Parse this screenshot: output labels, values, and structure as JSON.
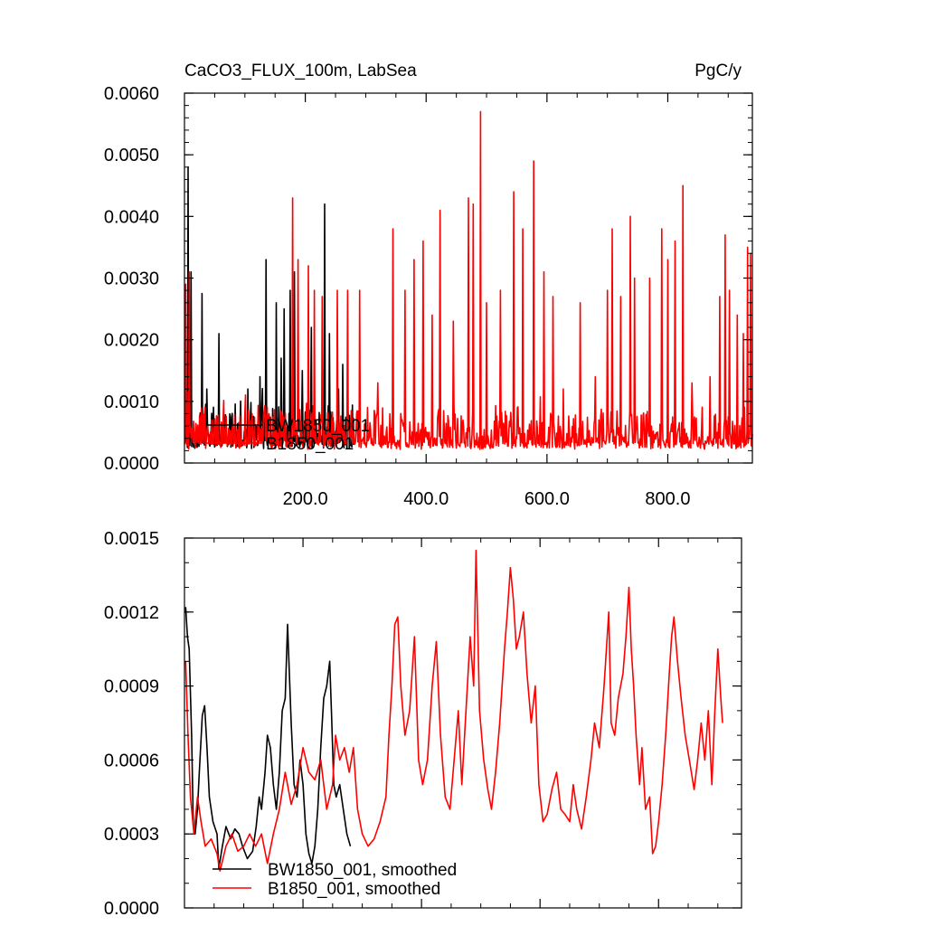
{
  "chart_data": [
    {
      "type": "line",
      "title": "CaCO3_FLUX_100m, LabSea",
      "units": "PgC/y",
      "xlim": [
        0,
        940
      ],
      "ylim": [
        0,
        0.006
      ],
      "x_ticks": [
        "200.0",
        "400.0",
        "600.0",
        "800.0"
      ],
      "y_ticks": [
        "0.0000",
        "0.0010",
        "0.0020",
        "0.0030",
        "0.0040",
        "0.0050",
        "0.0060"
      ],
      "grid": false,
      "legend_position": "inside-bottom-left",
      "series": [
        {
          "name": "BW1850_001",
          "color": "#000000",
          "x_start": 1,
          "x_end": 280,
          "base": 0.0003,
          "noise": 0.00022,
          "peaks": [
            [
              6,
              0.0048
            ],
            [
              11,
              0.0031
            ],
            [
              29,
              0.00275
            ],
            [
              37,
              0.0012
            ],
            [
              57,
              0.0021
            ],
            [
              75,
              0.0008
            ],
            [
              105,
              0.0012
            ],
            [
              125,
              0.0014
            ],
            [
              135,
              0.0033
            ],
            [
              152,
              0.0026
            ],
            [
              160,
              0.0017
            ],
            [
              165,
              0.0025
            ],
            [
              175,
              0.0028
            ],
            [
              182,
              0.0031
            ],
            [
              195,
              0.0015
            ],
            [
              210,
              0.0022
            ],
            [
              232,
              0.0042
            ],
            [
              240,
              0.0021
            ],
            [
              255,
              0.0012
            ],
            [
              262,
              0.0016
            ],
            [
              270,
              0.0009
            ]
          ]
        },
        {
          "name": "B1850_001",
          "color": "#ff0000",
          "x_start": 1,
          "x_end": 940,
          "base": 0.00028,
          "noise": 0.0002,
          "peaks": [
            [
              2,
              0.0029
            ],
            [
              8,
              0.0031
            ],
            [
              45,
              0.0007
            ],
            [
              140,
              0.0008
            ],
            [
              179,
              0.0043
            ],
            [
              188,
              0.0033
            ],
            [
              205,
              0.0032
            ],
            [
              215,
              0.0028
            ],
            [
              228,
              0.0027
            ],
            [
              253,
              0.0028
            ],
            [
              270,
              0.0028
            ],
            [
              290,
              0.0028
            ],
            [
              303,
              0.0009
            ],
            [
              320,
              0.0013
            ],
            [
              345,
              0.0038
            ],
            [
              365,
              0.0028
            ],
            [
              380,
              0.0033
            ],
            [
              395,
              0.0036
            ],
            [
              410,
              0.0024
            ],
            [
              423,
              0.0041
            ],
            [
              445,
              0.0023
            ],
            [
              470,
              0.0043
            ],
            [
              478,
              0.0042
            ],
            [
              490,
              0.0057
            ],
            [
              500,
              0.0026
            ],
            [
              523,
              0.0028
            ],
            [
              545,
              0.0044
            ],
            [
              560,
              0.0038
            ],
            [
              578,
              0.0049
            ],
            [
              595,
              0.0031
            ],
            [
              610,
              0.0027
            ],
            [
              627,
              0.0012
            ],
            [
              655,
              0.0026
            ],
            [
              680,
              0.0014
            ],
            [
              700,
              0.0028
            ],
            [
              708,
              0.0038
            ],
            [
              722,
              0.0027
            ],
            [
              738,
              0.004
            ],
            [
              745,
              0.003
            ],
            [
              770,
              0.003
            ],
            [
              790,
              0.0038
            ],
            [
              800,
              0.0033
            ],
            [
              812,
              0.0036
            ],
            [
              825,
              0.0045
            ],
            [
              840,
              0.0013
            ],
            [
              870,
              0.0014
            ],
            [
              886,
              0.0027
            ],
            [
              895,
              0.0037
            ],
            [
              902,
              0.0028
            ],
            [
              915,
              0.0024
            ],
            [
              925,
              0.0021
            ],
            [
              932,
              0.0035
            ],
            [
              937,
              0.0034
            ]
          ]
        }
      ],
      "legend": {
        "entries": [
          "BW1850_001",
          "B1850_001"
        ]
      }
    },
    {
      "type": "line",
      "title": "",
      "xlim": [
        0,
        940
      ],
      "ylim": [
        0,
        0.0015
      ],
      "y_ticks": [
        "0.0000",
        "0.0003",
        "0.0006",
        "0.0009",
        "0.0012",
        "0.0015"
      ],
      "grid": false,
      "legend_position": "inside-bottom-left",
      "series": [
        {
          "name": "BW1850_001, smoothed",
          "color": "#000000",
          "points": [
            [
              2,
              0.00122
            ],
            [
              5,
              0.0011
            ],
            [
              8,
              0.00105
            ],
            [
              12,
              0.0007
            ],
            [
              15,
              0.00033
            ],
            [
              18,
              0.0003
            ],
            [
              22,
              0.0004
            ],
            [
              25,
              0.00055
            ],
            [
              30,
              0.00078
            ],
            [
              34,
              0.00082
            ],
            [
              38,
              0.00065
            ],
            [
              42,
              0.00045
            ],
            [
              48,
              0.00035
            ],
            [
              55,
              0.0003
            ],
            [
              58,
              0.00016
            ],
            [
              64,
              0.00025
            ],
            [
              70,
              0.00033
            ],
            [
              78,
              0.00028
            ],
            [
              85,
              0.00032
            ],
            [
              92,
              0.0003
            ],
            [
              98,
              0.00025
            ],
            [
              106,
              0.0002
            ],
            [
              115,
              0.00023
            ],
            [
              121,
              0.00033
            ],
            [
              126,
              0.00045
            ],
            [
              130,
              0.0004
            ],
            [
              136,
              0.00055
            ],
            [
              140,
              0.0007
            ],
            [
              145,
              0.00065
            ],
            [
              150,
              0.0005
            ],
            [
              155,
              0.0004
            ],
            [
              160,
              0.00055
            ],
            [
              165,
              0.0008
            ],
            [
              170,
              0.00085
            ],
            [
              174,
              0.00115
            ],
            [
              180,
              0.00075
            ],
            [
              185,
              0.0005
            ],
            [
              190,
              0.00045
            ],
            [
              195,
              0.0006
            ],
            [
              200,
              0.0005
            ],
            [
              205,
              0.0003
            ],
            [
              210,
              0.00022
            ],
            [
              215,
              0.00018
            ],
            [
              220,
              0.00025
            ],
            [
              225,
              0.0004
            ],
            [
              230,
              0.00065
            ],
            [
              235,
              0.00085
            ],
            [
              240,
              0.0009
            ],
            [
              245,
              0.001
            ],
            [
              248,
              0.0008
            ],
            [
              252,
              0.0005
            ],
            [
              256,
              0.00045
            ],
            [
              262,
              0.0005
            ],
            [
              268,
              0.0004
            ],
            [
              274,
              0.0003
            ],
            [
              280,
              0.00025
            ]
          ]
        },
        {
          "name": "B1850_001, smoothed",
          "color": "#ff0000",
          "points": [
            [
              2,
              0.001
            ],
            [
              6,
              0.0007
            ],
            [
              10,
              0.00045
            ],
            [
              16,
              0.0003
            ],
            [
              22,
              0.00045
            ],
            [
              28,
              0.00035
            ],
            [
              35,
              0.00025
            ],
            [
              45,
              0.00028
            ],
            [
              55,
              0.00022
            ],
            [
              60,
              0.00015
            ],
            [
              70,
              0.00025
            ],
            [
              80,
              0.0003
            ],
            [
              90,
              0.00023
            ],
            [
              100,
              0.00025
            ],
            [
              110,
              0.0003
            ],
            [
              120,
              0.00025
            ],
            [
              130,
              0.0003
            ],
            [
              140,
              0.00018
            ],
            [
              150,
              0.0003
            ],
            [
              160,
              0.0004
            ],
            [
              170,
              0.00055
            ],
            [
              180,
              0.00042
            ],
            [
              190,
              0.0005
            ],
            [
              200,
              0.00065
            ],
            [
              210,
              0.00055
            ],
            [
              220,
              0.00052
            ],
            [
              230,
              0.0006
            ],
            [
              240,
              0.0004
            ],
            [
              250,
              0.0005
            ],
            [
              255,
              0.0007
            ],
            [
              262,
              0.0006
            ],
            [
              270,
              0.00065
            ],
            [
              278,
              0.00055
            ],
            [
              285,
              0.00065
            ],
            [
              292,
              0.0004
            ],
            [
              300,
              0.0003
            ],
            [
              310,
              0.00025
            ],
            [
              320,
              0.00028
            ],
            [
              330,
              0.00035
            ],
            [
              340,
              0.00045
            ],
            [
              345,
              0.0007
            ],
            [
              350,
              0.0009
            ],
            [
              355,
              0.00115
            ],
            [
              360,
              0.00118
            ],
            [
              365,
              0.0009
            ],
            [
              372,
              0.0007
            ],
            [
              380,
              0.0008
            ],
            [
              388,
              0.0011
            ],
            [
              395,
              0.0006
            ],
            [
              402,
              0.0005
            ],
            [
              410,
              0.0006
            ],
            [
              418,
              0.0009
            ],
            [
              425,
              0.00108
            ],
            [
              432,
              0.0007
            ],
            [
              440,
              0.00045
            ],
            [
              448,
              0.0004
            ],
            [
              455,
              0.0006
            ],
            [
              462,
              0.0008
            ],
            [
              468,
              0.0005
            ],
            [
              475,
              0.0008
            ],
            [
              482,
              0.0011
            ],
            [
              488,
              0.0009
            ],
            [
              492,
              0.00145
            ],
            [
              498,
              0.0008
            ],
            [
              505,
              0.0006
            ],
            [
              512,
              0.00048
            ],
            [
              518,
              0.0004
            ],
            [
              525,
              0.00055
            ],
            [
              532,
              0.00075
            ],
            [
              540,
              0.00105
            ],
            [
              545,
              0.0012
            ],
            [
              550,
              0.00138
            ],
            [
              555,
              0.00125
            ],
            [
              560,
              0.00105
            ],
            [
              565,
              0.0011
            ],
            [
              572,
              0.0012
            ],
            [
              578,
              0.00095
            ],
            [
              585,
              0.00075
            ],
            [
              592,
              0.0009
            ],
            [
              598,
              0.0005
            ],
            [
              605,
              0.00035
            ],
            [
              612,
              0.00038
            ],
            [
              620,
              0.00048
            ],
            [
              628,
              0.00055
            ],
            [
              635,
              0.0004
            ],
            [
              642,
              0.00038
            ],
            [
              650,
              0.00035
            ],
            [
              656,
              0.0005
            ],
            [
              662,
              0.0004
            ],
            [
              670,
              0.00032
            ],
            [
              678,
              0.00045
            ],
            [
              686,
              0.0006
            ],
            [
              692,
              0.00075
            ],
            [
              700,
              0.00065
            ],
            [
              708,
              0.0009
            ],
            [
              712,
              0.00105
            ],
            [
              716,
              0.0012
            ],
            [
              720,
              0.00075
            ],
            [
              726,
              0.0007
            ],
            [
              732,
              0.00085
            ],
            [
              740,
              0.00095
            ],
            [
              745,
              0.0011
            ],
            [
              750,
              0.0013
            ],
            [
              754,
              0.00105
            ],
            [
              758,
              0.0009
            ],
            [
              762,
              0.0007
            ],
            [
              768,
              0.0005
            ],
            [
              772,
              0.00065
            ],
            [
              778,
              0.0004
            ],
            [
              785,
              0.00045
            ],
            [
              790,
              0.00022
            ],
            [
              795,
              0.00025
            ],
            [
              800,
              0.00035
            ],
            [
              806,
              0.0005
            ],
            [
              812,
              0.0007
            ],
            [
              818,
              0.00095
            ],
            [
              822,
              0.0011
            ],
            [
              826,
              0.00118
            ],
            [
              832,
              0.001
            ],
            [
              838,
              0.00085
            ],
            [
              845,
              0.0007
            ],
            [
              852,
              0.0006
            ],
            [
              860,
              0.00048
            ],
            [
              866,
              0.0006
            ],
            [
              872,
              0.00075
            ],
            [
              878,
              0.0006
            ],
            [
              884,
              0.0008
            ],
            [
              890,
              0.0005
            ],
            [
              895,
              0.0008
            ],
            [
              900,
              0.00105
            ],
            [
              905,
              0.00085
            ],
            [
              908,
              0.00075
            ]
          ]
        }
      ],
      "legend": {
        "entries": [
          "BW1850_001, smoothed",
          "B1850_001, smoothed"
        ]
      }
    }
  ]
}
